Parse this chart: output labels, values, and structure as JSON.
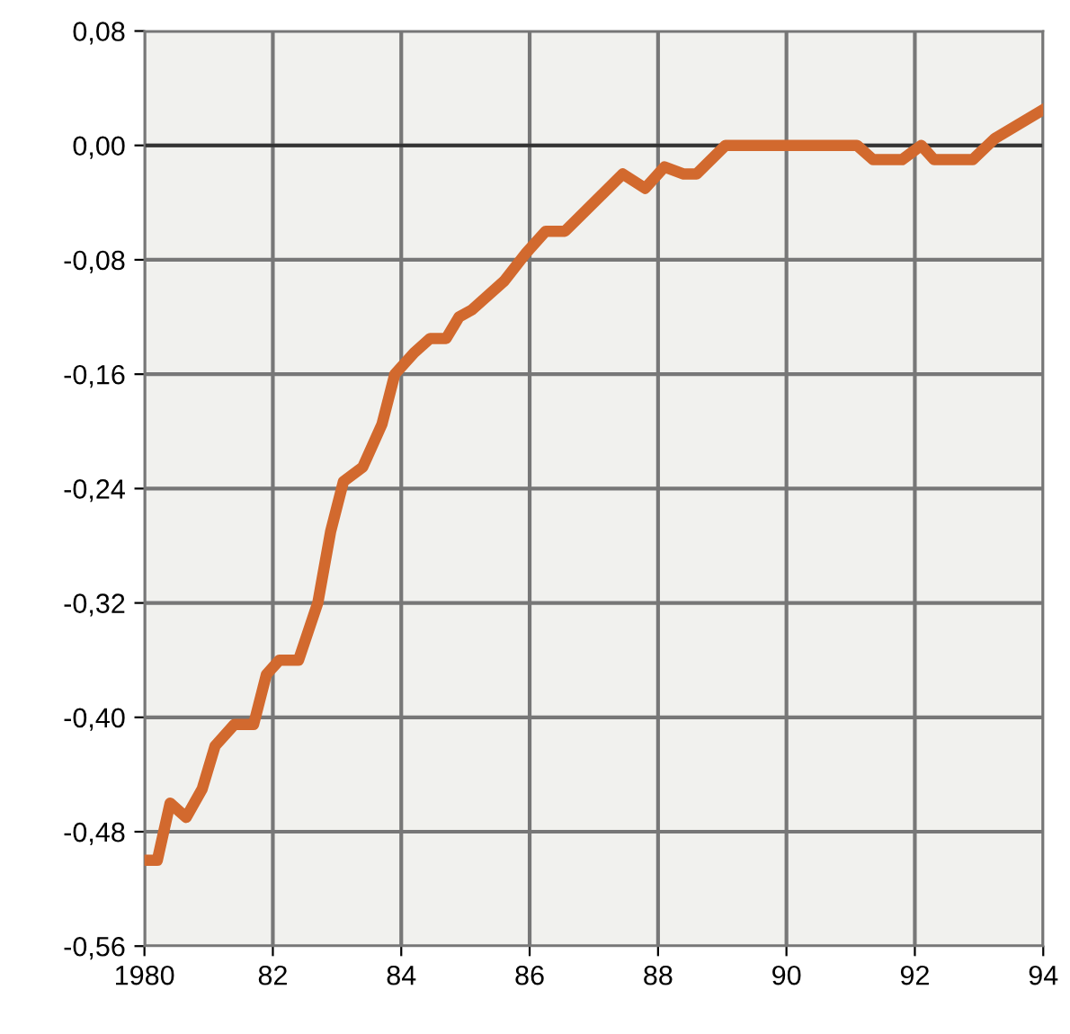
{
  "chart_data": {
    "type": "line",
    "series": [
      {
        "color": "#d2692e",
        "x": [
          1980.0,
          1980.2,
          1980.4,
          1980.65,
          1980.9,
          1981.1,
          1981.4,
          1981.7,
          1981.9,
          1982.1,
          1982.4,
          1982.7,
          1982.9,
          1983.1,
          1983.4,
          1983.7,
          1983.9,
          1984.2,
          1984.45,
          1984.7,
          1984.9,
          1985.1,
          1985.6,
          1985.95,
          1986.25,
          1986.55,
          1987.45,
          1987.8,
          1988.1,
          1988.4,
          1988.6,
          1989.05,
          1991.1,
          1991.35,
          1991.8,
          1992.1,
          1992.3,
          1992.9,
          1993.25,
          1994.0
        ],
        "values": [
          -0.5,
          -0.5,
          -0.46,
          -0.47,
          -0.45,
          -0.42,
          -0.405,
          -0.405,
          -0.37,
          -0.36,
          -0.36,
          -0.32,
          -0.27,
          -0.235,
          -0.225,
          -0.195,
          -0.16,
          -0.145,
          -0.135,
          -0.135,
          -0.12,
          -0.115,
          -0.095,
          -0.075,
          -0.06,
          -0.06,
          -0.02,
          -0.03,
          -0.015,
          -0.02,
          -0.02,
          0.0,
          0.0,
          -0.01,
          -0.01,
          0.0,
          -0.01,
          -0.01,
          0.005,
          0.025
        ]
      }
    ],
    "xlim": [
      1980,
      1994
    ],
    "xticks": [
      {
        "value": 1980,
        "label": "1980"
      },
      {
        "value": 1982,
        "label": "82"
      },
      {
        "value": 1984,
        "label": "84"
      },
      {
        "value": 1986,
        "label": "86"
      },
      {
        "value": 1988,
        "label": "88"
      },
      {
        "value": 1990,
        "label": "90"
      },
      {
        "value": 1992,
        "label": "92"
      },
      {
        "value": 1994,
        "label": "94"
      }
    ],
    "ylim": [
      -0.56,
      0.08
    ],
    "yticks": [
      {
        "value": 0.08,
        "label": "0,08"
      },
      {
        "value": 0.0,
        "label": "0,00"
      },
      {
        "value": -0.08,
        "label": "-0,08"
      },
      {
        "value": -0.16,
        "label": "-0,16"
      },
      {
        "value": -0.24,
        "label": "-0,24"
      },
      {
        "value": -0.32,
        "label": "-0,32"
      },
      {
        "value": -0.4,
        "label": "-0,40"
      },
      {
        "value": -0.48,
        "label": "-0,48"
      },
      {
        "value": -0.56,
        "label": "-0,56"
      }
    ],
    "ref_lines": [
      {
        "axis": "y",
        "value": 0.0,
        "label": null,
        "color": "#333333"
      }
    ],
    "grid": true,
    "marker": "none",
    "line_style": "solid"
  }
}
